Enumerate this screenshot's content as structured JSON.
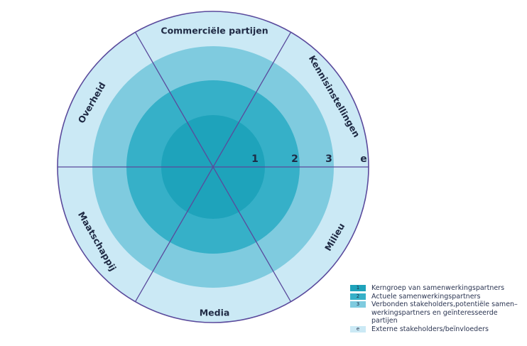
{
  "sectors": [
    {
      "id": "commercieel",
      "label": "Commerciële partijen"
    },
    {
      "id": "kennis",
      "label": "Kennisinstellingen"
    },
    {
      "id": "milieu",
      "label": "Milieu"
    },
    {
      "id": "media",
      "label": "Media"
    },
    {
      "id": "maatschappij",
      "label": "Maatschappij"
    },
    {
      "id": "overheid",
      "label": "Overheid"
    }
  ],
  "rings": [
    {
      "key": "1",
      "number": "1",
      "color": "#1ea3bb"
    },
    {
      "key": "2",
      "number": "2",
      "color": "#36b0c8"
    },
    {
      "key": "3",
      "number": "3",
      "color": "#7fcbdf"
    },
    {
      "key": "e",
      "number": "e",
      "color": "#cbe9f5"
    }
  ],
  "legend": [
    {
      "key": "1",
      "color": "#1ea3bb",
      "lines": [
        "Kerngroep van samenwerkingspartners"
      ]
    },
    {
      "key": "2",
      "color": "#36b0c8",
      "lines": [
        "Actuele samenwerkingspartners"
      ]
    },
    {
      "key": "3",
      "color": "#7fcbdf",
      "lines": [
        "Verbonden stakeholders,potentiële samen–",
        "werkingspartners en geïnteresseerde partijen"
      ]
    },
    {
      "key": "e",
      "color": "#cbe9f5",
      "lines": [
        "Externe stakeholders/beïnvloeders"
      ]
    }
  ],
  "line_color": "#5a4a9c"
}
